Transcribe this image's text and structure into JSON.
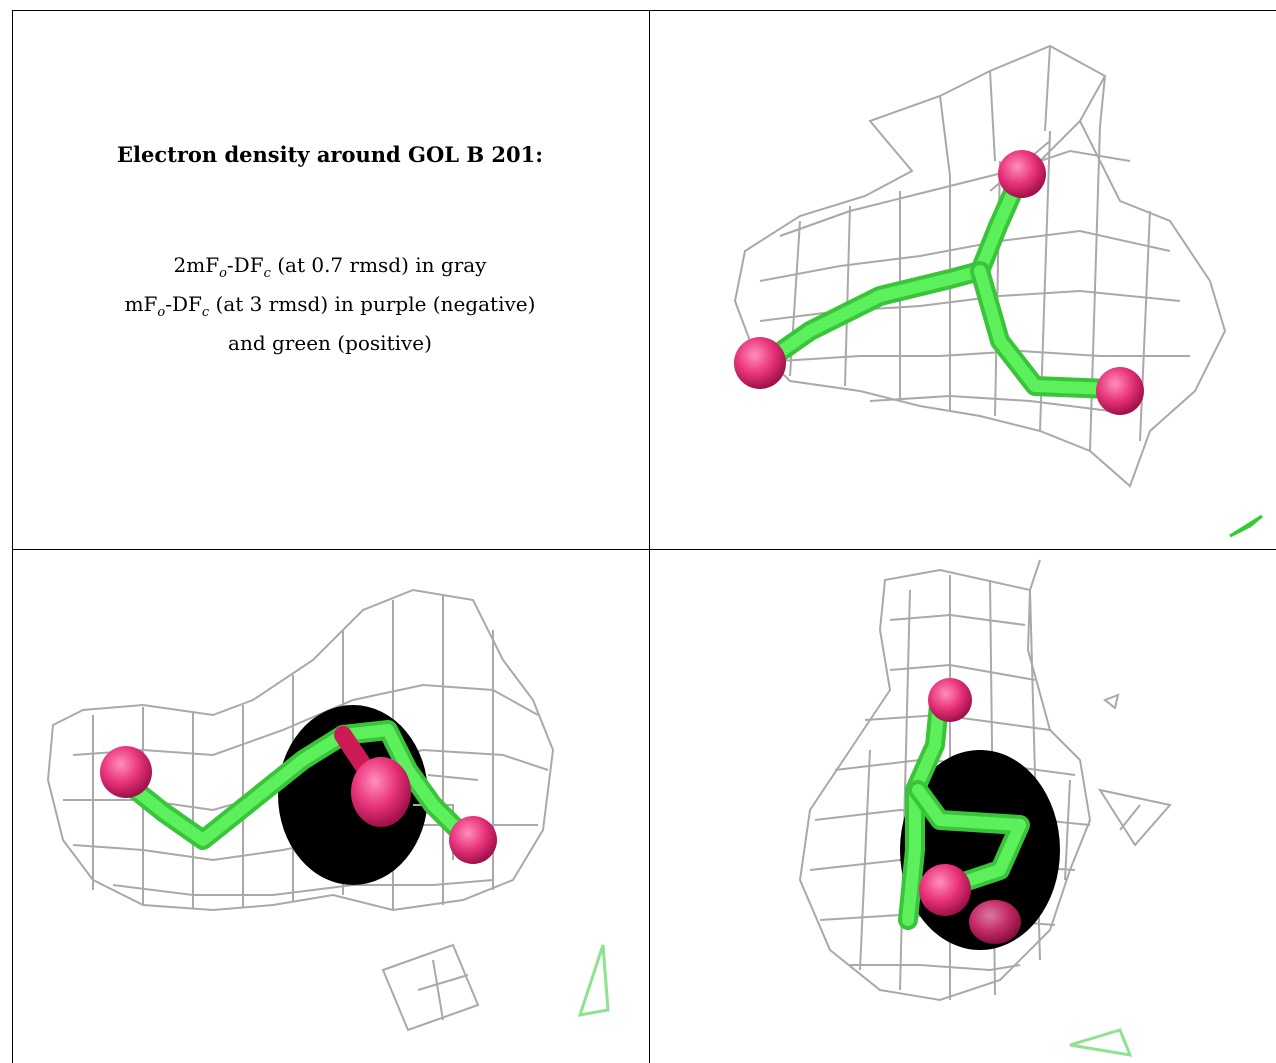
{
  "caption": {
    "title": "Electron density around GOL B 201:",
    "line1_pre": "2mF",
    "line1_sub1": "o",
    "line1_mid": "-DF",
    "line1_sub2": "c",
    "line1_post": " (at 0.7 rmsd) in gray",
    "line2_pre": "mF",
    "line2_sub1": "o",
    "line2_mid": "-DF",
    "line2_sub2": "c",
    "line2_post": " (at 3 rmsd) in purple (negative)",
    "line3": "and green (positive)"
  },
  "colors": {
    "mesh": "#a9a9a9",
    "carbon_bond": "#44ee44",
    "oxygen": "#e8337a",
    "border": "#000000"
  },
  "panels": [
    {
      "name": "view-1",
      "icon": "glycerol-model-icon"
    },
    {
      "name": "view-2",
      "icon": "glycerol-model-icon"
    },
    {
      "name": "view-3",
      "icon": "glycerol-model-icon"
    }
  ]
}
